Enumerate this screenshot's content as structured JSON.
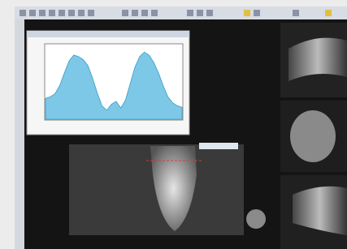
{
  "chart_data": {
    "type": "area",
    "values": [
      28,
      30,
      34,
      45,
      62,
      78,
      86,
      84,
      80,
      72,
      55,
      35,
      18,
      12,
      20,
      24,
      15,
      26,
      48,
      70,
      84,
      90,
      86,
      76,
      62,
      45,
      30,
      22,
      18,
      16
    ],
    "ylim": [
      0,
      100
    ],
    "color": "#7cc8e6"
  }
}
